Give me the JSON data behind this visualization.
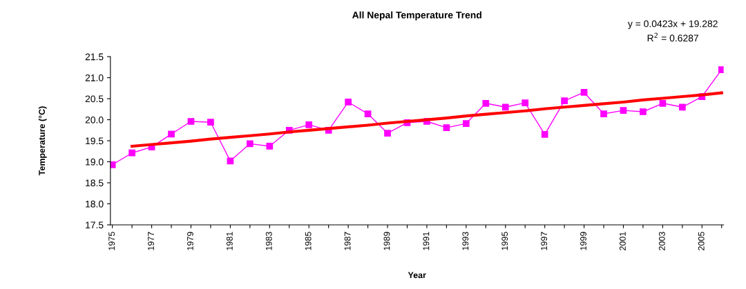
{
  "chart_data": {
    "type": "line",
    "title": "All Nepal Temperature Trend",
    "xlabel": "Year",
    "ylabel": "Temperature (°C)",
    "categories": [
      "1975",
      null,
      "1977",
      null,
      "1979",
      null,
      "1981",
      null,
      "1983",
      null,
      "1985",
      null,
      "1987",
      null,
      "1989",
      null,
      "1991",
      null,
      "1993",
      null,
      "1995",
      null,
      "1997",
      null,
      "1999",
      null,
      "2001",
      null,
      "2003",
      null,
      "2005",
      null
    ],
    "series": [
      {
        "color": "#ff00ff",
        "marker": "square",
        "values": [
          18.93,
          19.21,
          19.35,
          19.66,
          19.96,
          19.94,
          19.02,
          19.43,
          19.37,
          19.75,
          19.88,
          19.75,
          20.42,
          20.14,
          19.68,
          19.93,
          19.96,
          19.81,
          19.91,
          20.39,
          20.3,
          20.4,
          19.65,
          20.45,
          20.65,
          20.14,
          20.22,
          20.19,
          20.39,
          20.3,
          20.55,
          21.19
        ]
      },
      {
        "color": "#ff0000",
        "marker": "none",
        "values": [
          null,
          19.37,
          19.41,
          19.45,
          19.49,
          19.54,
          19.58,
          19.62,
          19.66,
          19.71,
          19.75,
          19.79,
          19.83,
          19.87,
          19.92,
          19.96,
          20.0,
          20.04,
          20.09,
          20.13,
          20.17,
          20.21,
          20.26,
          20.3,
          20.34,
          20.38,
          20.42,
          20.47,
          20.51,
          20.55,
          20.59,
          20.64
        ]
      }
    ],
    "ylim": [
      17.5,
      21.5
    ],
    "yticks": [
      17.5,
      {
        "value": 18,
        "label": "18.0"
      },
      18.5,
      {
        "value": 19,
        "label": "19.0"
      },
      19.5,
      {
        "value": 20,
        "label": "20.0"
      },
      20.5,
      {
        "value": 21,
        "label": "21.0"
      },
      21.5
    ],
    "grid": false,
    "legend": false,
    "annotations": [
      "y = 0.0423x + 19.282",
      "R$^{2}$ = 0.6287"
    ]
  }
}
